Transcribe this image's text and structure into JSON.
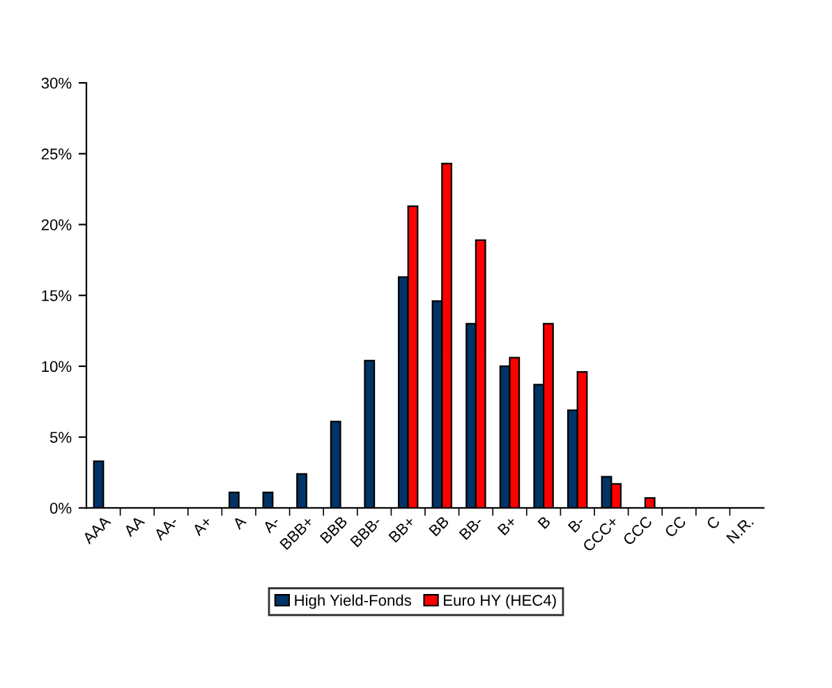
{
  "chart_data": {
    "type": "bar",
    "categories": [
      "AAA",
      "AA",
      "AA-",
      "A+",
      "A",
      "A-",
      "BBB+",
      "BBB",
      "BBB-",
      "BB+",
      "BB",
      "BB-",
      "B+",
      "B",
      "B-",
      "CCC+",
      "CCC",
      "CC",
      "C",
      "N.R."
    ],
    "series": [
      {
        "name": "High Yield-Fonds",
        "color": "#003366",
        "values": [
          3.3,
          0,
          0,
          0,
          1.1,
          1.1,
          2.4,
          6.1,
          10.4,
          16.3,
          14.6,
          13.0,
          10.0,
          8.7,
          6.9,
          2.2,
          0,
          0,
          0,
          0
        ]
      },
      {
        "name": "Euro HY (HEC4)",
        "color": "#ff0000",
        "values": [
          0,
          0,
          0,
          0,
          0,
          0,
          0,
          0,
          0,
          21.3,
          24.3,
          18.9,
          10.6,
          13.0,
          9.6,
          1.7,
          0.7,
          0,
          0,
          0
        ]
      }
    ],
    "ylim": [
      0,
      30
    ],
    "yticks": [
      {
        "value": 0,
        "label": "0%"
      },
      {
        "value": 5,
        "label": "5%"
      },
      {
        "value": 10,
        "label": "10%"
      },
      {
        "value": 15,
        "label": "15%"
      },
      {
        "value": 20,
        "label": "20%"
      },
      {
        "value": 25,
        "label": "25%"
      },
      {
        "value": 30,
        "label": "30%"
      }
    ],
    "grid": false,
    "legend": "bottom"
  }
}
